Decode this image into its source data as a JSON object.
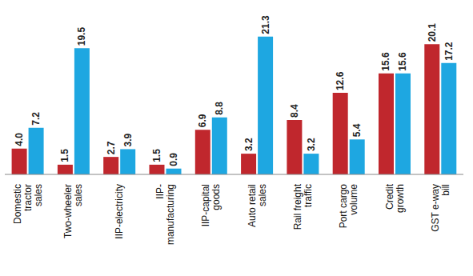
{
  "chart_data": {
    "type": "bar",
    "categories": [
      "Domestic tractor sales",
      "Two-wheeler sales",
      "IIP-electricity",
      "IIP-manufacturing",
      "IIP-capital goods",
      "Auto retail sales",
      "Rail freight traffic",
      "Port cargo volume",
      "Credit growth",
      "GST e-way bill"
    ],
    "series": [
      {
        "color": "#c0272d",
        "values": [
          4.0,
          1.5,
          2.7,
          1.5,
          6.9,
          3.2,
          8.4,
          12.6,
          15.6,
          20.1
        ],
        "value_labels": [
          "4.0",
          "1.5",
          "2.7",
          "1.5",
          "6.9",
          "3.2",
          "8.4",
          "12.6",
          "15.6",
          "20.1"
        ]
      },
      {
        "color": "#1ea7e1",
        "values": [
          7.2,
          19.5,
          3.9,
          0.9,
          8.8,
          21.3,
          3.2,
          5.4,
          15.6,
          17.2
        ],
        "value_labels": [
          "7.2",
          "19.5",
          "3.9",
          "0.9",
          "8.8",
          "21.3",
          "3.2",
          "5.4",
          "15.6",
          "17.2"
        ]
      }
    ],
    "ylim": [
      0,
      22
    ],
    "data_labels": true,
    "tick_labels": "x"
  }
}
